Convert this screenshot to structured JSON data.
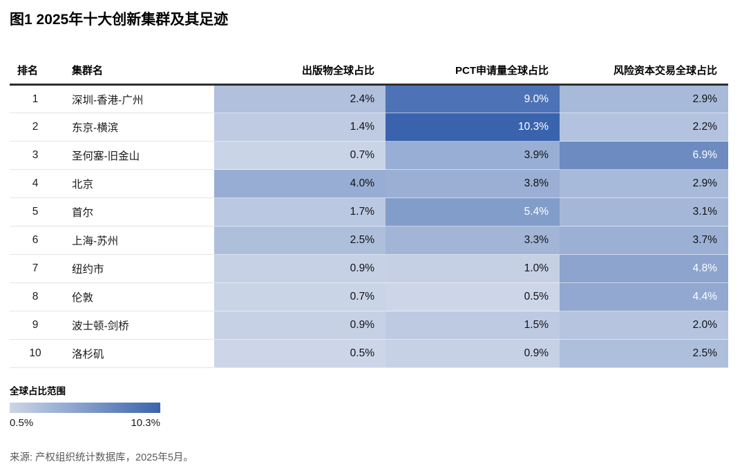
{
  "figure": {
    "title": "图1 2025年十大创新集群及其足迹",
    "source": "来源: 产权组织统计数据库，2025年5月。"
  },
  "table": {
    "headers": {
      "rank": "排名",
      "name": "集群名",
      "metrics": [
        "出版物全球占比",
        "PCT申请量全球占比",
        "风险资本交易全球占比"
      ]
    },
    "value_suffix": "%",
    "rows": [
      {
        "rank": "1",
        "name": "深圳-香港-广州",
        "values": [
          2.4,
          9.0,
          2.9
        ]
      },
      {
        "rank": "2",
        "name": "东京-横滨",
        "values": [
          1.4,
          10.3,
          2.2
        ]
      },
      {
        "rank": "3",
        "name": "圣何塞-旧金山",
        "values": [
          0.7,
          3.9,
          6.9
        ]
      },
      {
        "rank": "4",
        "name": "北京",
        "values": [
          4.0,
          3.8,
          2.9
        ]
      },
      {
        "rank": "5",
        "name": "首尔",
        "values": [
          1.7,
          5.4,
          3.1
        ]
      },
      {
        "rank": "6",
        "name": "上海-苏州",
        "values": [
          2.5,
          3.3,
          3.7
        ]
      },
      {
        "rank": "7",
        "name": "纽约市",
        "values": [
          0.9,
          1.0,
          4.8
        ]
      },
      {
        "rank": "8",
        "name": "伦敦",
        "values": [
          0.7,
          0.5,
          4.4
        ]
      },
      {
        "rank": "9",
        "name": "波士顿-剑桥",
        "values": [
          0.9,
          1.5,
          2.0
        ]
      },
      {
        "rank": "10",
        "name": "洛杉矶",
        "values": [
          0.5,
          0.9,
          2.5
        ]
      }
    ]
  },
  "legend": {
    "title": "全球占比范围",
    "min_label": "0.5%",
    "max_label": "10.3%"
  },
  "colors": {
    "scale_min": "#ccd6e8",
    "scale_max": "#3a63ad",
    "scale_domain": [
      0.5,
      10.3
    ],
    "white_text_threshold": 4.2,
    "cell_text_dark": "#111111",
    "cell_text_light": "#ffffff",
    "header_rule": "#2d2d2d"
  },
  "chart_data": {
    "type": "heatmap",
    "title": "图1 2025年十大创新集群及其足迹",
    "ranks": [
      1,
      2,
      3,
      4,
      5,
      6,
      7,
      8,
      9,
      10
    ],
    "rows": [
      "深圳-香港-广州",
      "东京-横滨",
      "圣何塞-旧金山",
      "北京",
      "首尔",
      "上海-苏州",
      "纽约市",
      "伦敦",
      "波士顿-剑桥",
      "洛杉矶"
    ],
    "columns": [
      "出版物全球占比",
      "PCT申请量全球占比",
      "风险资本交易全球占比"
    ],
    "values_percent": [
      [
        2.4,
        9.0,
        2.9
      ],
      [
        1.4,
        10.3,
        2.2
      ],
      [
        0.7,
        3.9,
        6.9
      ],
      [
        4.0,
        3.8,
        2.9
      ],
      [
        1.7,
        5.4,
        3.1
      ],
      [
        2.5,
        3.3,
        3.7
      ],
      [
        0.9,
        1.0,
        4.8
      ],
      [
        0.7,
        0.5,
        4.4
      ],
      [
        0.9,
        1.5,
        2.0
      ],
      [
        0.5,
        0.9,
        2.5
      ]
    ],
    "color_scale": {
      "min_value": 0.5,
      "max_value": 10.3,
      "min_color": "#ccd6e8",
      "max_color": "#3a63ad"
    },
    "legend_title": "全球占比范围",
    "legend_min_label": "0.5%",
    "legend_max_label": "10.3%",
    "source": "来源: 产权组织统计数据库，2025年5月。"
  }
}
